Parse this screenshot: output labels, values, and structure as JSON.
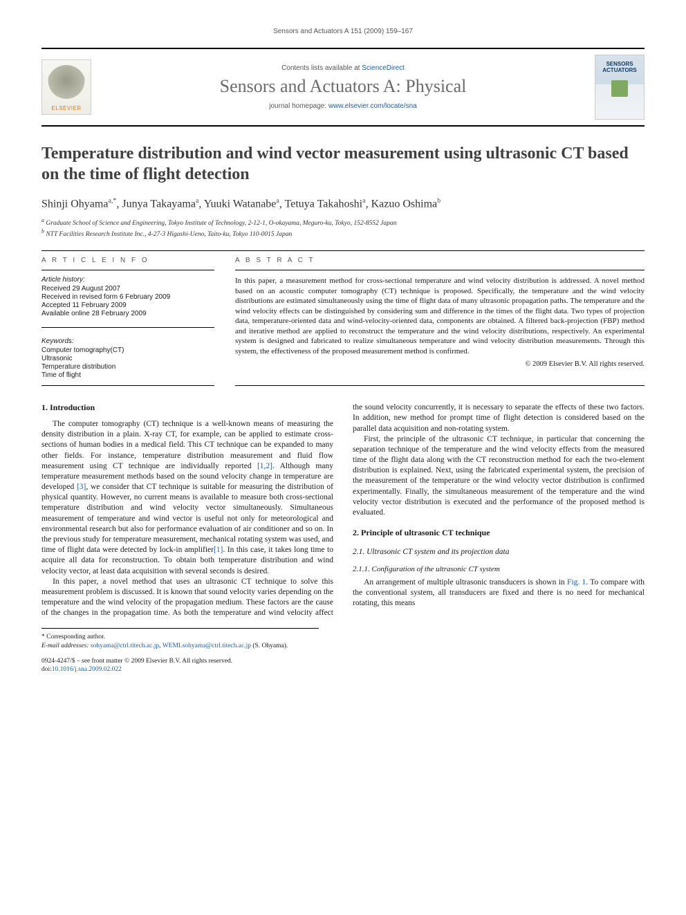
{
  "running_header": "Sensors and Actuators A 151 (2009) 159–167",
  "masthead": {
    "contents_prefix": "Contents lists available at ",
    "contents_link": "ScienceDirect",
    "journal_title": "Sensors and Actuators A: Physical",
    "homepage_prefix": "journal homepage: ",
    "homepage_link": "www.elsevier.com/locate/sna",
    "publisher_word": "ELSEVIER",
    "cover_word1": "SENSORS",
    "cover_word2": "ACTUATORS"
  },
  "title": "Temperature distribution and wind vector measurement using ultrasonic CT based on the time of flight detection",
  "authors_html": "Shinji Ohyama<sup>a,*</sup>, Junya Takayama<sup>a</sup>, Yuuki Watanabe<sup>a</sup>, Tetuya Takahoshi<sup>a</sup>, Kazuo Oshima<sup>b</sup>",
  "affiliations": {
    "a": "Graduate School of Science and Engineering, Tokyo Institute of Technology, 2-12-1, O-okayama, Meguro-ku, Tokyo, 152-8552 Japan",
    "b": "NTT Facilities Research Institute Inc., 4-27-3 Higashi-Ueno, Taito-ku, Tokyo 110-0015 Japan"
  },
  "article_info": {
    "heading": "A R T I C L E   I N F O",
    "history_label": "Article history:",
    "history": [
      "Received 29 August 2007",
      "Received in revised form 6 February 2009",
      "Accepted 11 February 2009",
      "Available online 28 February 2009"
    ],
    "keywords_label": "Keywords:",
    "keywords": [
      "Computer tomography(CT)",
      "Ultrasonic",
      "Temperature distribution",
      "Time of flight"
    ]
  },
  "abstract": {
    "heading": "A B S T R A C T",
    "text": "In this paper, a measurement method for cross-sectional temperature and wind velocity distribution is addressed. A novel method based on an acoustic computer tomography (CT) technique is proposed. Specifically, the temperature and the wind velocity distributions are estimated simultaneously using the time of flight data of many ultrasonic propagation paths. The temperature and the wind velocity effects can be distinguished by considering sum and difference in the times of the flight data. Two types of projection data, temperature-oriented data and wind-velocity-oriented data, components are obtained. A filtered back-projection (FBP) method and iterative method are applied to reconstruct the temperature and the wind velocity distributions, respectively. An experimental system is designed and fabricated to realize simultaneous temperature and wind velocity distribution measurements. Through this system, the effectiveness of the proposed measurement method is confirmed.",
    "copyright": "© 2009 Elsevier B.V. All rights reserved."
  },
  "sections": {
    "s1_heading": "1.  Introduction",
    "s1_p1": "The computer tomography (CT) technique is a well-known means of measuring the density distribution in a plain. X-ray CT, for example, can be applied to estimate cross-sections of human bodies in a medical field. This CT technique can be expanded to many other fields. For instance, temperature distribution measurement and fluid flow measurement using CT technique are individually reported [1,2]. Although many temperature measurement methods based on the sound velocity change in temperature are developed [3], we consider that CT technique is suitable for measuring the distribution of physical quantity. However, no current means is available to measure both cross-sectional temperature distribution and wind velocity vector simultaneously. Simultaneous measurement of temperature and wind vector is useful not only for meteorological and environmental research but also for performance evaluation of air conditioner and so on. In the previous study for temperature measurement, mechanical rotating system was used, and time of flight data were detected by lock-in amplifier[1]. In this case, it takes long time to acquire all data for reconstruction. To obtain both temperature distribution and wind velocity vector, at least data acquisition with several seconds is desired.",
    "s1_p2": "In this paper, a novel method that uses an ultrasonic CT technique to solve this measurement problem is discussed. It is known that sound velocity varies depending on the temperature and the wind velocity of the propagation medium. These factors are the cause of the changes in the propagation time. As both the temperature and wind velocity affect the sound velocity concurrently, it is necessary to separate the effects of these two factors. In addition, new method for prompt time of flight detection is considered based on the parallel data acquisition and non-rotating system.",
    "s1_p3": "First, the principle of the ultrasonic CT technique, in particular that concerning the separation technique of the temperature and the wind velocity effects from the measured time of the flight data along with the CT reconstruction method for each the two-element distribution is explained. Next, using the fabricated experimental system, the precision of the measurement of the temperature or the wind velocity vector distribution is confirmed experimentally. Finally, the simultaneous measurement of the temperature and the wind velocity vector distribution is executed and the performance of the proposed method is evaluated.",
    "s2_heading": "2.  Principle of ultrasonic CT technique",
    "s21_heading": "2.1.  Ultrasonic CT system and its projection data",
    "s211_heading": "2.1.1.  Configuration of the ultrasonic CT system",
    "s211_p1": "An arrangement of multiple ultrasonic transducers is shown in Fig. 1. To compare with the conventional system, all transducers are fixed and there is no need for mechanical rotating, this means"
  },
  "footnote": {
    "corresponding": "* Corresponding author.",
    "email_label": "E-mail addresses:",
    "email1": "sohyama@ctrl.titech.ac.jp",
    "email_sep": ", ",
    "email2": "WEMLsohyama@ctrl.titech.ac.jp",
    "email_tail": "(S. Ohyama)."
  },
  "bottom": {
    "issn_line": "0924-4247/$ – see front matter © 2009 Elsevier B.V. All rights reserved.",
    "doi_label": "doi:",
    "doi": "10.1016/j.sna.2009.02.022"
  },
  "colors": {
    "link": "#1a5ea8",
    "title_grey": "#6b6b6b",
    "text": "#1a1a1a",
    "elsevier_orange": "#e67817"
  }
}
